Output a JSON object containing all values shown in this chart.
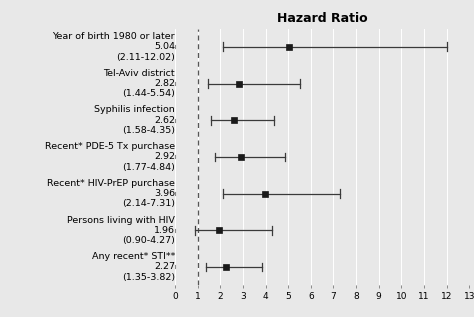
{
  "title": "Hazard Ratio",
  "label_lines": [
    [
      "Year of birth 1980 or later",
      "5.04",
      "(2.11-12.02)"
    ],
    [
      "Tel-Aviv district",
      "2.82",
      "(1.44-5.54)"
    ],
    [
      "Syphilis infection",
      "2.62",
      "(1.58-4.35)"
    ],
    [
      "Recent* PDE-5 Tx purchase",
      "2.92",
      "(1.77-4.84)"
    ],
    [
      "Recent* HIV-PrEP purchase",
      "3.96",
      "(2.14-7.31)"
    ],
    [
      "Persons living with HIV",
      "1.96",
      "(0.90-4.27)"
    ],
    [
      "Any recent* STI**",
      "2.27",
      "(1.35-3.82)"
    ]
  ],
  "hr": [
    5.04,
    2.82,
    2.62,
    2.92,
    3.96,
    1.96,
    2.27
  ],
  "ci_low": [
    2.11,
    1.44,
    1.58,
    1.77,
    2.14,
    0.9,
    1.35
  ],
  "ci_high": [
    12.02,
    5.54,
    4.35,
    4.84,
    7.31,
    4.27,
    3.82
  ],
  "xlim": [
    0,
    13
  ],
  "xticks": [
    0,
    1,
    2,
    3,
    4,
    5,
    6,
    7,
    8,
    9,
    10,
    11,
    12,
    13
  ],
  "vline_x": 1,
  "left_bg": "#ffffff",
  "plot_bg": "#e8e8e8",
  "fig_bg": "#e8e8e8",
  "grid_color": "#ffffff",
  "marker_color": "#1a1a1a",
  "line_color": "#3a3a3a",
  "title_fontsize": 9,
  "label_fontsize": 6.8,
  "tick_fontsize": 6.5
}
